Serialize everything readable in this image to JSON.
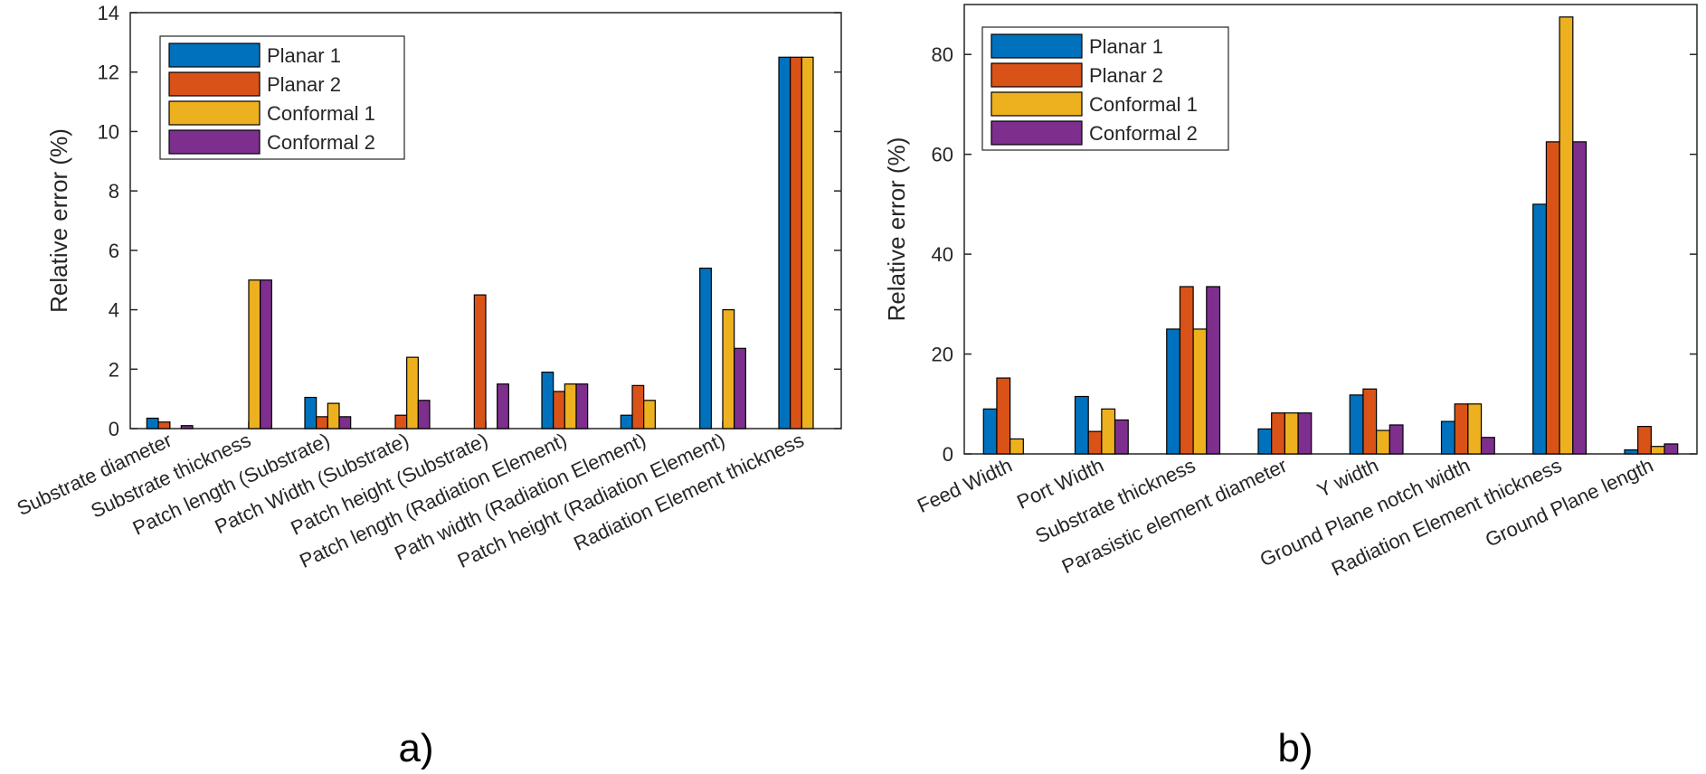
{
  "colors": {
    "Planar 1": "#0072bd",
    "Planar 2": "#d95319",
    "Conformal 1": "#edb120",
    "Conformal 2": "#7e2f8e"
  },
  "chart_data": [
    {
      "type": "bar",
      "panel_label": "a)",
      "title": "",
      "xlabel": "",
      "ylabel": "Relative error (%)",
      "ylim": [
        0,
        14
      ],
      "yticks": [
        0,
        2,
        4,
        6,
        8,
        10,
        12,
        14
      ],
      "legend_position": "top-left",
      "categories": [
        "Substrate diameter",
        "Substrate thickness",
        "Patch length (Substrate)",
        "Patch Width (Substrate)",
        "Patch height (Substrate)",
        "Patch length (Radiation Element)",
        "Path width (Radiation Element)",
        "Patch height (Radiation Element)",
        "Radiation Element thickness"
      ],
      "series": [
        {
          "name": "Planar 1",
          "values": [
            0.35,
            0,
            1.05,
            0,
            0,
            1.9,
            0.45,
            5.4,
            12.5
          ]
        },
        {
          "name": "Planar 2",
          "values": [
            0.22,
            0,
            0.4,
            0.45,
            4.5,
            1.25,
            1.45,
            0,
            12.5
          ]
        },
        {
          "name": "Conformal 1",
          "values": [
            0,
            5.0,
            0.85,
            2.4,
            0,
            1.5,
            0.95,
            4.0,
            12.5
          ]
        },
        {
          "name": "Conformal 2",
          "values": [
            0.1,
            5.0,
            0.4,
            0.95,
            1.5,
            1.5,
            0,
            2.7,
            0
          ]
        }
      ]
    },
    {
      "type": "bar",
      "panel_label": "b)",
      "title": "",
      "xlabel": "",
      "ylabel": "Relative error (%)",
      "ylim": [
        0,
        90
      ],
      "yticks": [
        0,
        20,
        40,
        60,
        80
      ],
      "legend_position": "top-left",
      "categories": [
        "Feed Width",
        "Port Width",
        "Substrate thickness",
        "Parasistic element diameter",
        "Y width",
        "Ground Plane notch width",
        "Radiation Element thickness",
        "Ground Plane length"
      ],
      "series": [
        {
          "name": "Planar 1",
          "values": [
            9.0,
            11.5,
            25.0,
            5.0,
            11.8,
            6.5,
            50.0,
            0.8
          ]
        },
        {
          "name": "Planar 2",
          "values": [
            15.2,
            4.5,
            33.5,
            8.2,
            13.0,
            10.0,
            62.5,
            5.5
          ]
        },
        {
          "name": "Conformal 1",
          "values": [
            3.0,
            9.0,
            25.0,
            8.2,
            4.7,
            10.0,
            87.5,
            1.5
          ]
        },
        {
          "name": "Conformal 2",
          "values": [
            0,
            6.8,
            33.5,
            8.2,
            5.8,
            3.3,
            62.5,
            2.0
          ]
        }
      ]
    }
  ]
}
